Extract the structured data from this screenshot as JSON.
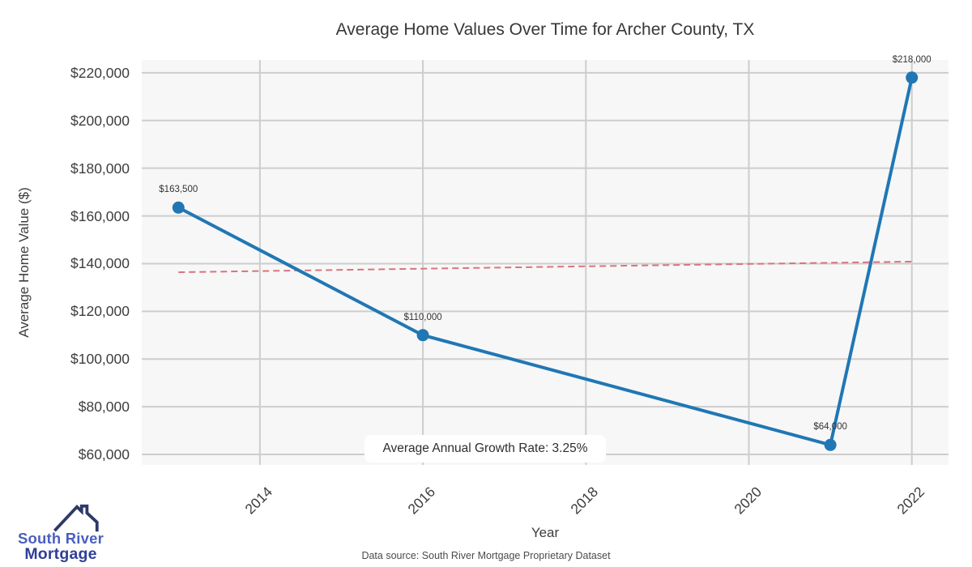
{
  "page": {
    "title": "Average Home Values Over Time for Archer County, TX"
  },
  "chart_data": {
    "type": "line",
    "title": "Average Home Values Over Time for Archer County, TX",
    "xlabel": "Year",
    "ylabel": "Average Home Value ($)",
    "x": [
      2013,
      2016,
      2021,
      2022
    ],
    "values": [
      163500,
      110000,
      64000,
      218000
    ],
    "point_labels": [
      "$163,500",
      "$110,000",
      "$64,000",
      "$218,000"
    ],
    "x_ticks": [
      2014,
      2016,
      2018,
      2020,
      2022
    ],
    "y_ticks": [
      60000,
      80000,
      100000,
      120000,
      140000,
      160000,
      180000,
      200000,
      220000
    ],
    "y_tick_labels": [
      "$60,000",
      "$80,000",
      "$100,000",
      "$120,000",
      "$140,000",
      "$160,000",
      "$180,000",
      "$200,000",
      "$220,000"
    ],
    "xlim": [
      2012.55,
      2022.45
    ],
    "ylim": [
      55600,
      225400
    ],
    "grid": true,
    "legend": "none",
    "trend_line": {
      "style": "dashed",
      "x": [
        2013,
        2022
      ],
      "values": [
        136400,
        140850
      ],
      "color": "#d9757c"
    },
    "annotation": "Average Annual Growth Rate: 3.25%",
    "colors": {
      "line": "#2077b4",
      "marker": "#2077b4",
      "grid": "#cdcdcd",
      "plot_bg": "#f7f7f8",
      "tick_text": "#3d3d3d"
    }
  },
  "footer": {
    "data_source": "Data source: South River Mortgage Proprietary Dataset"
  },
  "logo": {
    "name": "South River Mortgage",
    "line1": "South River",
    "line2": "Mortgage",
    "icon": "house-roof-icon",
    "colors": {
      "roof": "#2d3a68",
      "line1": "#4a5fc0",
      "line2": "#303f98"
    }
  }
}
